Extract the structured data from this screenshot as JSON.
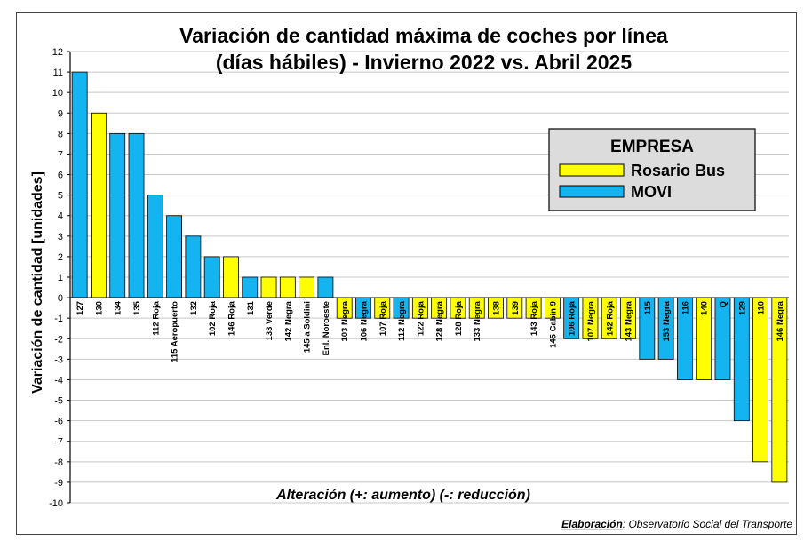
{
  "chart_data": {
    "type": "bar",
    "title_line1": "Variación de cantidad máxima de coches por línea",
    "title_line2": "(días hábiles) - Invierno 2022 vs. Abril 2025",
    "ylabel": "Variación de cantidad [unidades]",
    "xlabel": "Alteración (+: aumento) (-: reducción)",
    "ylim": [
      -10,
      12
    ],
    "ytick_step": 1,
    "grid": true,
    "legend": {
      "title": "EMPRESA",
      "placement": "top-right",
      "entries": [
        {
          "label": "Rosario Bus",
          "color": "#ffff00"
        },
        {
          "label": "MOVI",
          "color": "#14b4f0"
        }
      ]
    },
    "company_colors": {
      "Rosario Bus": "#ffff00",
      "MOVI": "#14b4f0"
    },
    "bars": [
      {
        "category": "127",
        "value": 11,
        "company": "MOVI"
      },
      {
        "category": "130",
        "value": 9,
        "company": "Rosario Bus"
      },
      {
        "category": "134",
        "value": 8,
        "company": "MOVI"
      },
      {
        "category": "135",
        "value": 8,
        "company": "MOVI"
      },
      {
        "category": "112 Roja",
        "value": 5,
        "company": "MOVI"
      },
      {
        "category": "115 Aeropuerto",
        "value": 4,
        "company": "MOVI"
      },
      {
        "category": "132",
        "value": 3,
        "company": "MOVI"
      },
      {
        "category": "102 Roja",
        "value": 2,
        "company": "MOVI"
      },
      {
        "category": "146 Roja",
        "value": 2,
        "company": "Rosario Bus"
      },
      {
        "category": "131",
        "value": 1,
        "company": "MOVI"
      },
      {
        "category": "133 Verde",
        "value": 1,
        "company": "Rosario Bus"
      },
      {
        "category": "142 Negra",
        "value": 1,
        "company": "Rosario Bus"
      },
      {
        "category": "145 a Soldini",
        "value": 1,
        "company": "Rosario Bus"
      },
      {
        "category": "Enl. Noroeste",
        "value": 1,
        "company": "MOVI"
      },
      {
        "category": "103 Negra",
        "value": -1,
        "company": "Rosario Bus"
      },
      {
        "category": "106 Negra",
        "value": -1,
        "company": "MOVI"
      },
      {
        "category": "107 Roja",
        "value": -1,
        "company": "Rosario Bus"
      },
      {
        "category": "112 Negra",
        "value": -1,
        "company": "MOVI"
      },
      {
        "category": "122 Roja",
        "value": -1,
        "company": "Rosario Bus"
      },
      {
        "category": "128 Negra",
        "value": -1,
        "company": "Rosario Bus"
      },
      {
        "category": "128 Roja",
        "value": -1,
        "company": "Rosario Bus"
      },
      {
        "category": "133 Negra",
        "value": -1,
        "company": "Rosario Bus"
      },
      {
        "category": "138",
        "value": -1,
        "company": "Rosario Bus"
      },
      {
        "category": "139",
        "value": -1,
        "company": "Rosario Bus"
      },
      {
        "category": "143 Roja",
        "value": -1,
        "company": "Rosario Bus"
      },
      {
        "category": "145 Cabin 9",
        "value": -1,
        "company": "Rosario Bus"
      },
      {
        "category": "106 Roja",
        "value": -2,
        "company": "MOVI"
      },
      {
        "category": "107 Negra",
        "value": -2,
        "company": "Rosario Bus"
      },
      {
        "category": "142 Roja",
        "value": -2,
        "company": "Rosario Bus"
      },
      {
        "category": "143 Negra",
        "value": -2,
        "company": "Rosario Bus"
      },
      {
        "category": "115",
        "value": -3,
        "company": "MOVI"
      },
      {
        "category": "153 Negra",
        "value": -3,
        "company": "MOVI"
      },
      {
        "category": "116",
        "value": -4,
        "company": "MOVI"
      },
      {
        "category": "140",
        "value": -4,
        "company": "Rosario Bus"
      },
      {
        "category": "Q",
        "value": -4,
        "company": "MOVI"
      },
      {
        "category": "129",
        "value": -6,
        "company": "MOVI"
      },
      {
        "category": "110",
        "value": -8,
        "company": "Rosario Bus"
      },
      {
        "category": "146 Negra",
        "value": -9,
        "company": "Rosario Bus"
      }
    ]
  },
  "credit": {
    "prefix": "Elaboración",
    "suffix": ": Observatorio Social del Transporte"
  }
}
